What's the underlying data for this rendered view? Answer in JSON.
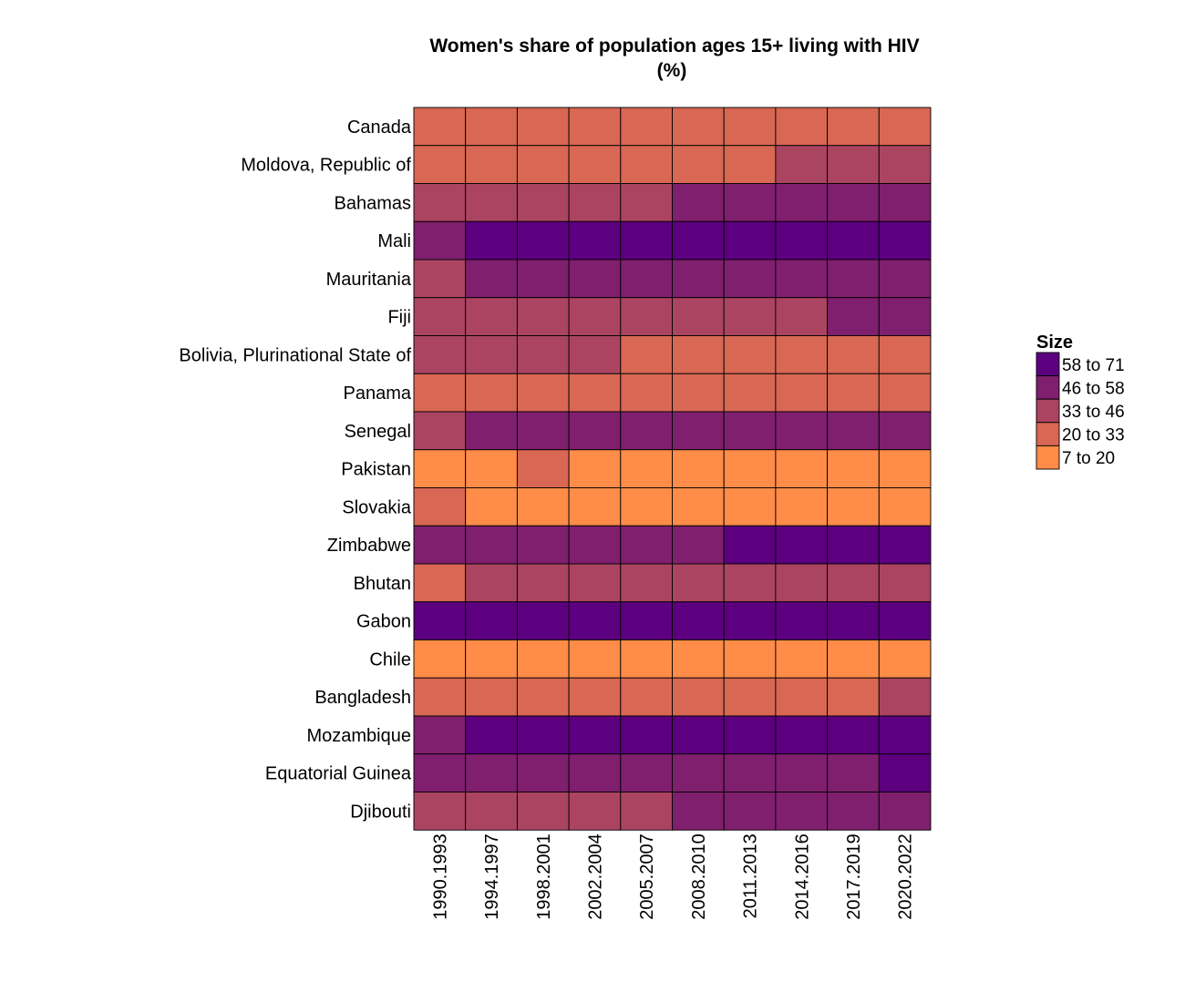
{
  "chart_data": {
    "type": "heatmap",
    "title_line1": "Women's share of population ages 15+ living with HIV",
    "title_line2": "(%)",
    "x_categories": [
      "1990.1993",
      "1994.1997",
      "1998.2001",
      "2002.2004",
      "2005.2007",
      "2008.2010",
      "2011.2013",
      "2014.2016",
      "2017.2019",
      "2020.2022"
    ],
    "y_categories": [
      "Canada",
      "Moldova, Republic of",
      "Bahamas",
      "Mali",
      "Mauritania",
      "Fiji",
      "Bolivia, Plurinational State of",
      "Panama",
      "Senegal",
      "Pakistan",
      "Slovakia",
      "Zimbabwe",
      "Bhutan",
      "Gabon",
      "Chile",
      "Bangladesh",
      "Mozambique",
      "Equatorial Guinea",
      "Djibouti"
    ],
    "legend": {
      "title": "Size",
      "bins": [
        {
          "label": "58 to 71",
          "color": "#5c007f"
        },
        {
          "label": "46 to 58",
          "color": "#7f1f6e"
        },
        {
          "label": "33 to 46",
          "color": "#ab4461"
        },
        {
          "label": "20 to 33",
          "color": "#d86753"
        },
        {
          "label": "7 to 20",
          "color": "#ff8c48"
        }
      ]
    },
    "bin_index_matrix": [
      [
        3,
        3,
        3,
        3,
        3,
        3,
        3,
        3,
        3,
        3
      ],
      [
        3,
        3,
        3,
        3,
        3,
        3,
        3,
        2,
        2,
        2
      ],
      [
        2,
        2,
        2,
        2,
        2,
        1,
        1,
        1,
        1,
        1
      ],
      [
        1,
        0,
        0,
        0,
        0,
        0,
        0,
        0,
        0,
        0
      ],
      [
        2,
        1,
        1,
        1,
        1,
        1,
        1,
        1,
        1,
        1
      ],
      [
        2,
        2,
        2,
        2,
        2,
        2,
        2,
        2,
        1,
        1
      ],
      [
        2,
        2,
        2,
        2,
        3,
        3,
        3,
        3,
        3,
        3
      ],
      [
        3,
        3,
        3,
        3,
        3,
        3,
        3,
        3,
        3,
        3
      ],
      [
        2,
        1,
        1,
        1,
        1,
        1,
        1,
        1,
        1,
        1
      ],
      [
        4,
        4,
        3,
        4,
        4,
        4,
        4,
        4,
        4,
        4
      ],
      [
        3,
        4,
        4,
        4,
        4,
        4,
        4,
        4,
        4,
        4
      ],
      [
        1,
        1,
        1,
        1,
        1,
        1,
        0,
        0,
        0,
        0
      ],
      [
        3,
        2,
        2,
        2,
        2,
        2,
        2,
        2,
        2,
        2
      ],
      [
        0,
        0,
        0,
        0,
        0,
        0,
        0,
        0,
        0,
        0
      ],
      [
        4,
        4,
        4,
        4,
        4,
        4,
        4,
        4,
        4,
        4
      ],
      [
        3,
        3,
        3,
        3,
        3,
        3,
        3,
        3,
        3,
        2
      ],
      [
        1,
        0,
        0,
        0,
        0,
        0,
        0,
        0,
        0,
        0
      ],
      [
        1,
        1,
        1,
        1,
        1,
        1,
        1,
        1,
        1,
        0
      ],
      [
        2,
        2,
        2,
        2,
        2,
        1,
        1,
        1,
        1,
        1
      ]
    ]
  }
}
